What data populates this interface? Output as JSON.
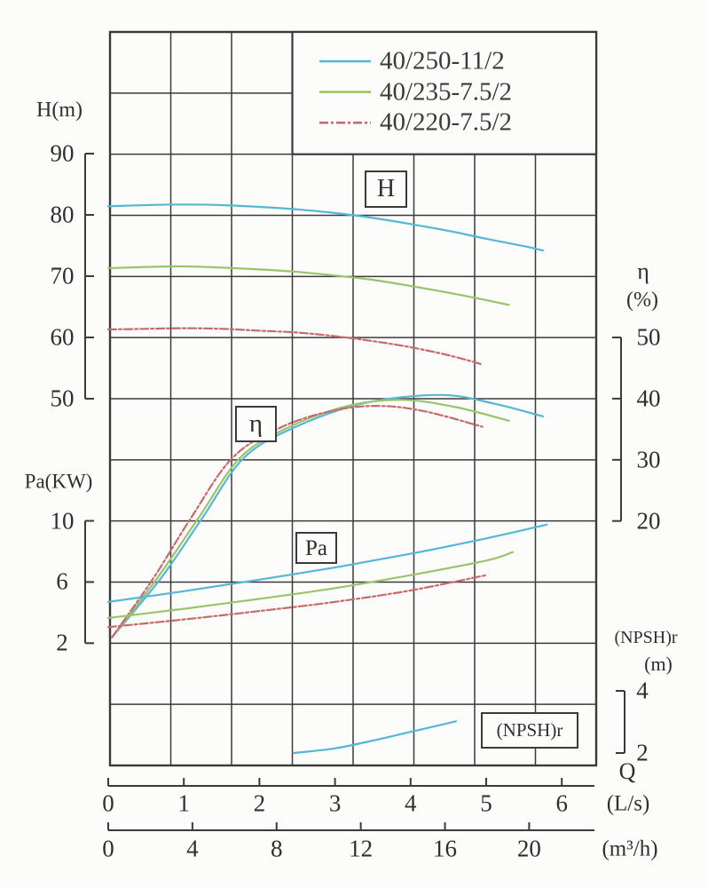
{
  "page": {
    "background": "#fcfcfb",
    "grid_color": "#3a3a3a"
  },
  "legend": {
    "items": [
      {
        "label": "40/250-11/2",
        "color": "#55b7d4",
        "style": "solid"
      },
      {
        "label": "40/235-7.5/2",
        "color": "#9ac46c",
        "style": "solid"
      },
      {
        "label": "40/220-7.5/2",
        "color": "#c96a6a",
        "style": "dashdot"
      }
    ]
  },
  "axes": {
    "head": {
      "title": "H(m)",
      "ticks": [
        90,
        80,
        70,
        60,
        50
      ]
    },
    "power": {
      "title": "Pa(KW)",
      "ticks": [
        10,
        6,
        2
      ]
    },
    "efficiency": {
      "title": "η",
      "unit": "(%)",
      "ticks": [
        50,
        40,
        30,
        20
      ]
    },
    "npsh": {
      "title": "(NPSH)r",
      "unit": "(m)",
      "ticks": [
        4,
        2
      ]
    },
    "flow": {
      "symbol": "Q",
      "primary_unit": "(L/s)",
      "primary_ticks": [
        0,
        1,
        2,
        3,
        4,
        5,
        6
      ],
      "secondary_unit": "(m³/h)",
      "secondary_ticks": [
        0,
        4,
        8,
        12,
        16,
        20
      ]
    }
  },
  "curve_labels": {
    "head": "H",
    "efficiency": "η",
    "power": "Pa",
    "npsh": "(NPSH)r"
  },
  "chart_data": {
    "type": "line",
    "grid": true,
    "x": {
      "label": "Q",
      "units": [
        "L/s",
        "m³/h"
      ],
      "range_ls": [
        0,
        6.4
      ],
      "range_m3h": [
        0,
        23
      ]
    },
    "y_axes": {
      "H": {
        "label": "H(m)",
        "range": [
          50,
          90
        ]
      },
      "eta": {
        "label": "η (%)",
        "range": [
          20,
          50
        ]
      },
      "Pa": {
        "label": "Pa (KW)",
        "range": [
          2,
          10
        ]
      },
      "NPSH": {
        "label": "(NPSH)r (m)",
        "range": [
          2,
          4
        ]
      }
    },
    "series": [
      {
        "name": "40/250-11/2",
        "quantity": "H",
        "unit": "m",
        "color": "#55b7d4",
        "dash": false,
        "points": [
          [
            0,
            81.4
          ],
          [
            0.5,
            81.6
          ],
          [
            1,
            81.7
          ],
          [
            1.5,
            81.6
          ],
          [
            2,
            81.3
          ],
          [
            2.5,
            80.9
          ],
          [
            3,
            80.3
          ],
          [
            3.5,
            79.5
          ],
          [
            4,
            78.5
          ],
          [
            4.5,
            77.4
          ],
          [
            5,
            76.1
          ],
          [
            5.5,
            74.9
          ],
          [
            5.75,
            74.2
          ]
        ]
      },
      {
        "name": "40/235-7.5/2",
        "quantity": "H",
        "unit": "m",
        "color": "#9ac46c",
        "dash": false,
        "points": [
          [
            0,
            71.3
          ],
          [
            0.5,
            71.5
          ],
          [
            1,
            71.6
          ],
          [
            1.5,
            71.4
          ],
          [
            2,
            71.1
          ],
          [
            2.5,
            70.7
          ],
          [
            3,
            70.1
          ],
          [
            3.5,
            69.4
          ],
          [
            4,
            68.4
          ],
          [
            4.5,
            67.3
          ],
          [
            5,
            66.1
          ],
          [
            5.3,
            65.3
          ]
        ]
      },
      {
        "name": "40/220-7.5/2",
        "quantity": "H",
        "unit": "m",
        "color": "#c96a6a",
        "dash": true,
        "points": [
          [
            0,
            61.3
          ],
          [
            0.5,
            61.4
          ],
          [
            1,
            61.5
          ],
          [
            1.5,
            61.4
          ],
          [
            2,
            61.1
          ],
          [
            2.5,
            60.8
          ],
          [
            3,
            60.2
          ],
          [
            3.5,
            59.4
          ],
          [
            4,
            58.4
          ],
          [
            4.5,
            57.1
          ],
          [
            4.95,
            55.6
          ]
        ]
      },
      {
        "name": "40/250-11/2",
        "quantity": "eta",
        "unit": "%",
        "color": "#55b7d4",
        "dash": false,
        "points": [
          [
            0.05,
            1
          ],
          [
            0.7,
            10.7
          ],
          [
            1.25,
            20.6
          ],
          [
            1.8,
            30.4
          ],
          [
            2.5,
            35.5
          ],
          [
            3.4,
            39.3
          ],
          [
            4.4,
            40.6
          ],
          [
            5.1,
            39.2
          ],
          [
            5.75,
            37.1
          ]
        ]
      },
      {
        "name": "40/235-7.5/2",
        "quantity": "eta",
        "unit": "%",
        "color": "#9ac46c",
        "dash": false,
        "points": [
          [
            0.05,
            1
          ],
          [
            0.65,
            10.7
          ],
          [
            1.2,
            20.6
          ],
          [
            1.75,
            30.4
          ],
          [
            2.4,
            35.4
          ],
          [
            3.2,
            38.9
          ],
          [
            3.9,
            39.8
          ],
          [
            4.6,
            38.6
          ],
          [
            5.3,
            36.4
          ]
        ]
      },
      {
        "name": "40/220-7.5/2",
        "quantity": "eta",
        "unit": "%",
        "color": "#c96a6a",
        "dash": true,
        "points": [
          [
            0.05,
            1
          ],
          [
            0.6,
            10.7
          ],
          [
            1.1,
            20.6
          ],
          [
            1.65,
            30.4
          ],
          [
            2.3,
            35.4
          ],
          [
            3.0,
            38.1
          ],
          [
            3.6,
            38.8
          ],
          [
            4.2,
            37.9
          ],
          [
            4.95,
            35.4
          ]
        ]
      },
      {
        "name": "40/250-11/2",
        "quantity": "Pa",
        "unit": "KW",
        "color": "#55b7d4",
        "dash": false,
        "points": [
          [
            0,
            4.7
          ],
          [
            1,
            5.4
          ],
          [
            2,
            6.15
          ],
          [
            3,
            6.95
          ],
          [
            4,
            7.85
          ],
          [
            5,
            8.85
          ],
          [
            5.8,
            9.75
          ]
        ]
      },
      {
        "name": "40/235-7.5/2",
        "quantity": "Pa",
        "unit": "KW",
        "color": "#9ac46c",
        "dash": false,
        "points": [
          [
            0,
            3.65
          ],
          [
            1,
            4.25
          ],
          [
            2,
            4.9
          ],
          [
            3,
            5.6
          ],
          [
            4,
            6.45
          ],
          [
            5,
            7.4
          ],
          [
            5.35,
            7.95
          ]
        ]
      },
      {
        "name": "40/220-7.5/2",
        "quantity": "Pa",
        "unit": "KW",
        "color": "#c96a6a",
        "dash": true,
        "points": [
          [
            0,
            3.05
          ],
          [
            1,
            3.55
          ],
          [
            2,
            4.1
          ],
          [
            3,
            4.7
          ],
          [
            4,
            5.45
          ],
          [
            5,
            6.45
          ]
        ]
      },
      {
        "name": "40/250-11/2",
        "quantity": "NPSH",
        "unit": "m",
        "color": "#55b7d4",
        "dash": false,
        "points": [
          [
            2.45,
            2.0
          ],
          [
            3.0,
            2.15
          ],
          [
            3.5,
            2.4
          ],
          [
            4.0,
            2.68
          ],
          [
            4.6,
            3.02
          ]
        ]
      }
    ]
  }
}
